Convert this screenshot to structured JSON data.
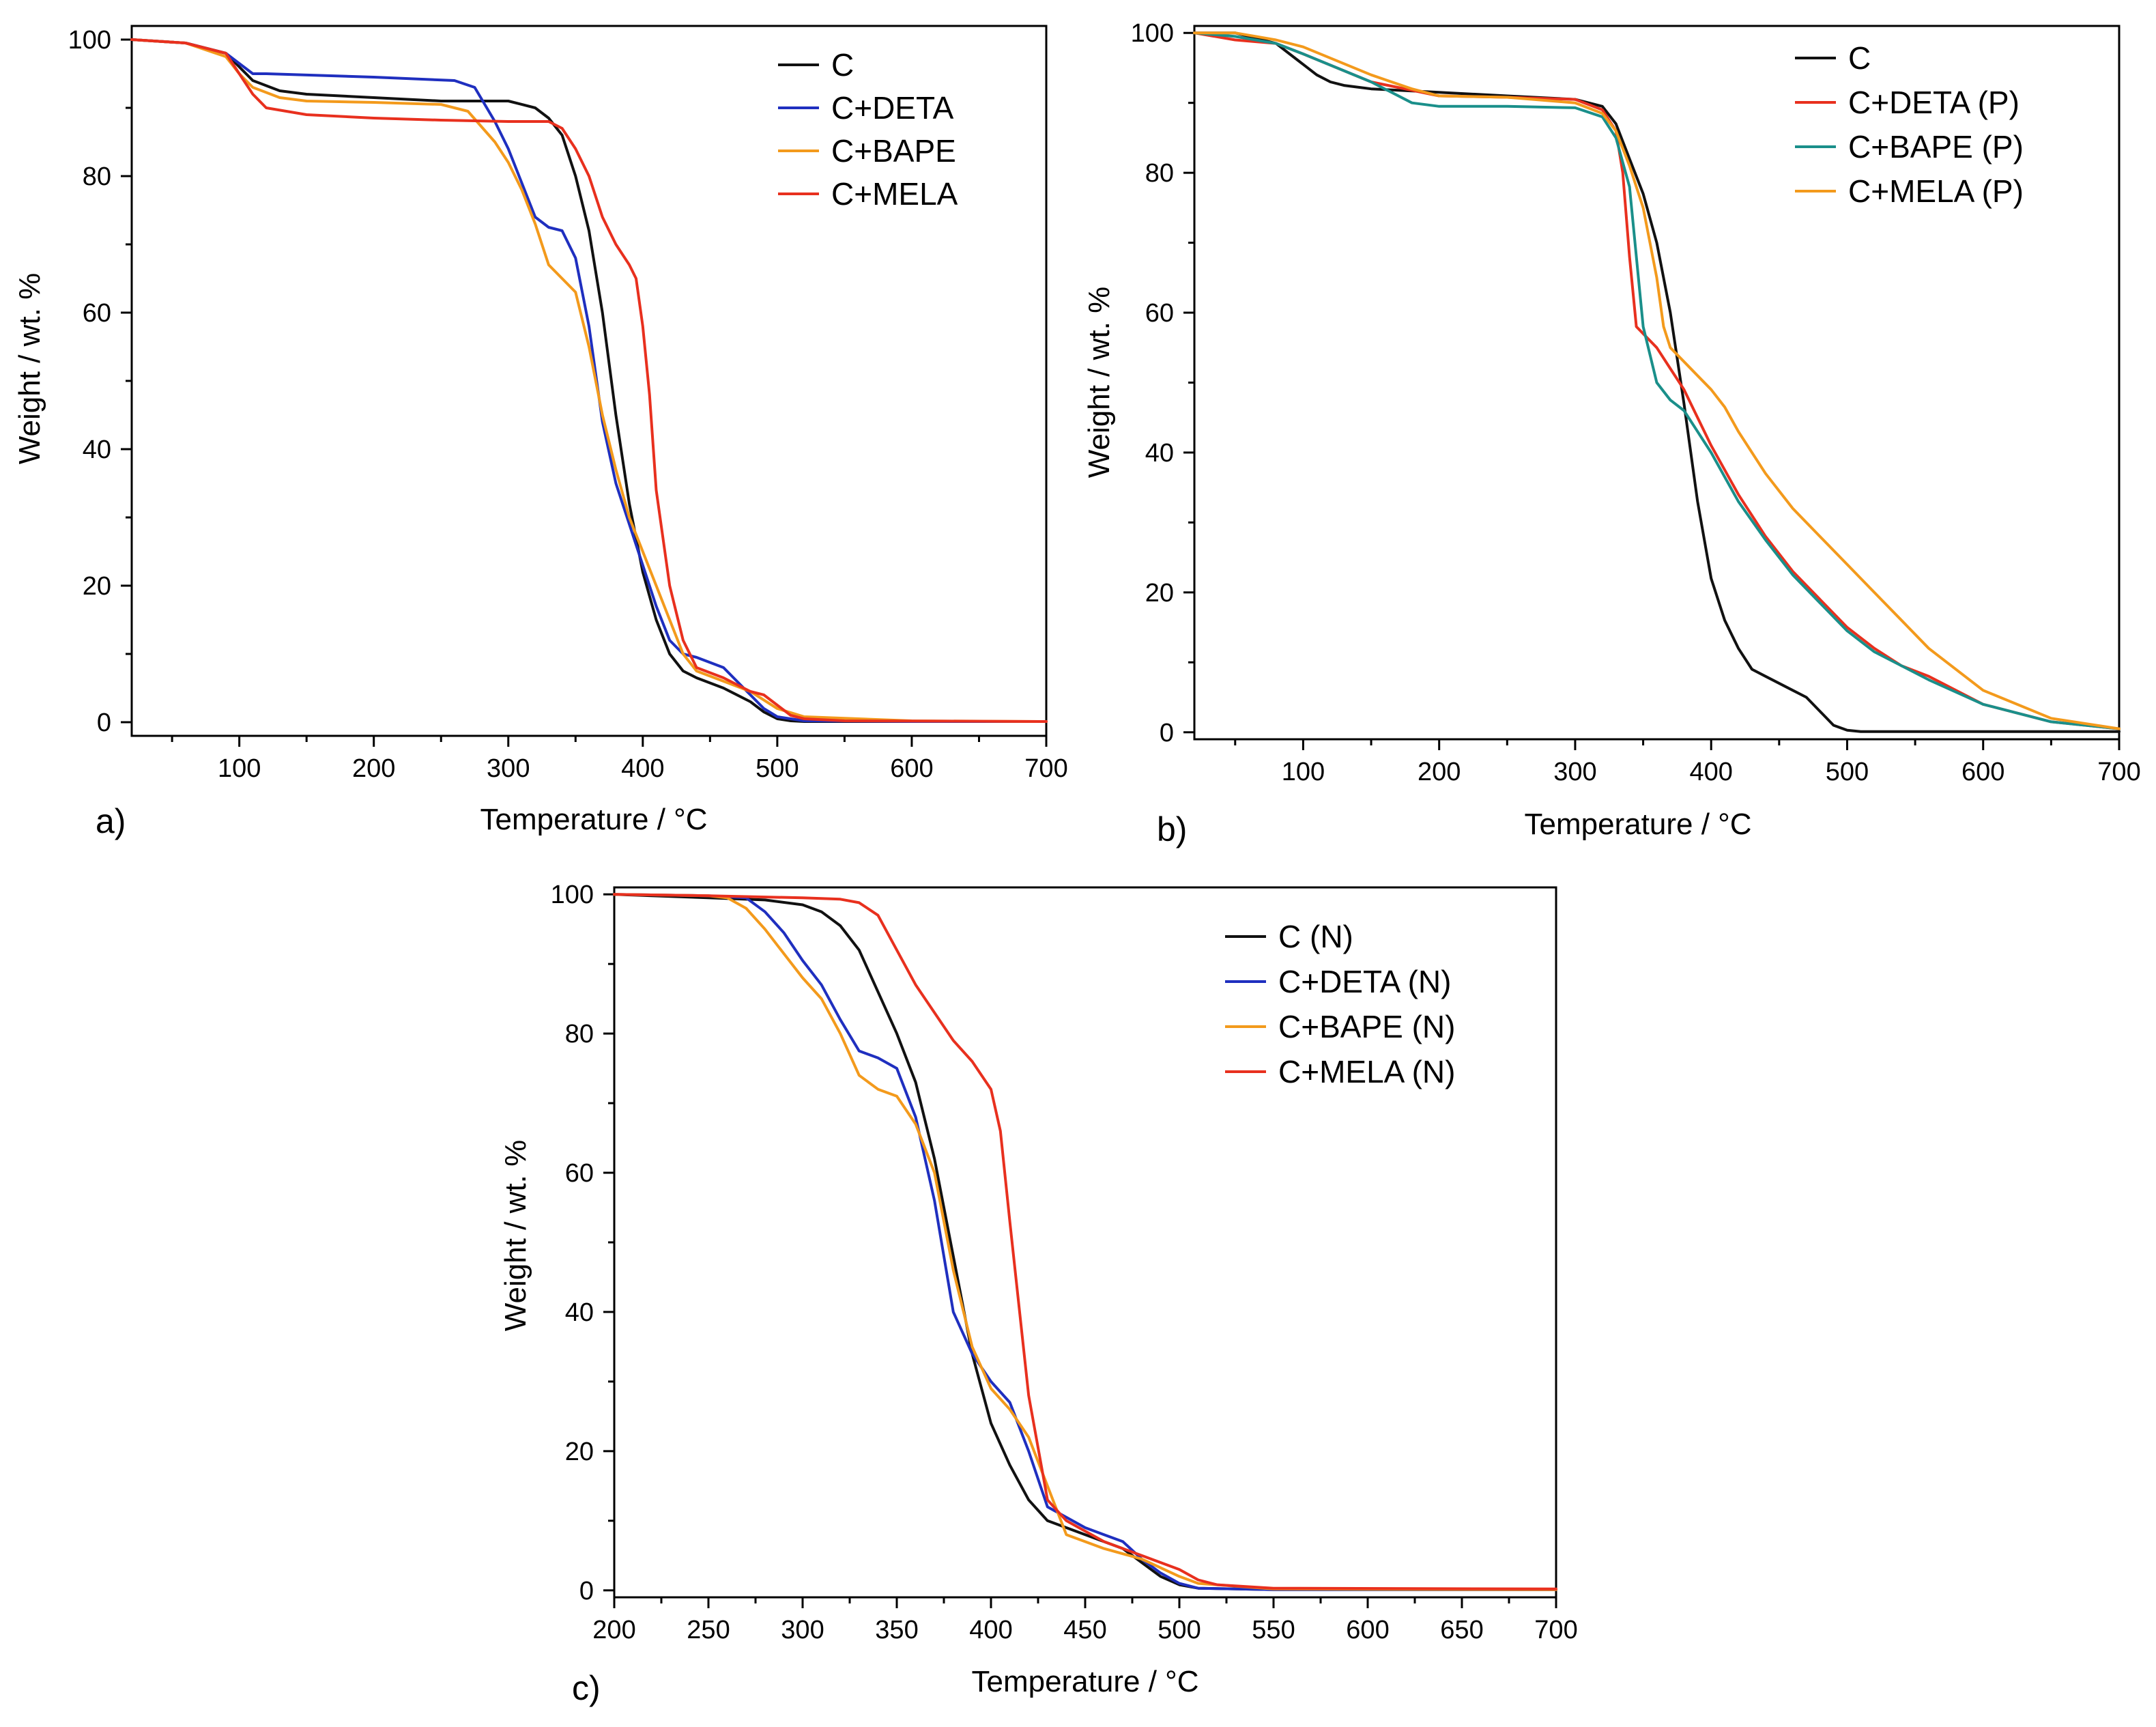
{
  "colors": {
    "black": "#111111",
    "blue": "#1f2fbf",
    "orange": "#f39a1c",
    "red": "#e8301e",
    "teal": "#1a8f8a"
  },
  "chart_data": [
    {
      "type": "line",
      "panel": "a)",
      "title": "",
      "xlabel": "Temperature / °C",
      "ylabel": "Weight / wt. %",
      "xlim": [
        20,
        700
      ],
      "ylim": [
        -2,
        102
      ],
      "xticks": [
        100,
        200,
        300,
        400,
        500,
        600,
        700
      ],
      "yticks": [
        0,
        20,
        40,
        60,
        80,
        100
      ],
      "legend_position": "top-right",
      "series": [
        {
          "name": "C",
          "color": "#111111",
          "x": [
            20,
            60,
            90,
            100,
            110,
            130,
            150,
            200,
            250,
            300,
            320,
            330,
            340,
            350,
            360,
            370,
            380,
            390,
            400,
            410,
            420,
            430,
            440,
            460,
            480,
            490,
            500,
            510,
            520,
            540,
            600,
            700
          ],
          "y": [
            100,
            99.5,
            98,
            96,
            94,
            92.5,
            92,
            91.5,
            91,
            91,
            90,
            88.5,
            86,
            80,
            72,
            60,
            45,
            32,
            22,
            15,
            10,
            7.5,
            6.5,
            5,
            3,
            1.5,
            0.5,
            0.2,
            0.1,
            0.1,
            0.1,
            0.1
          ]
        },
        {
          "name": "C+DETA",
          "color": "#1f2fbf",
          "x": [
            20,
            60,
            90,
            100,
            110,
            120,
            200,
            260,
            275,
            290,
            300,
            310,
            320,
            330,
            340,
            350,
            360,
            370,
            380,
            390,
            400,
            410,
            420,
            430,
            440,
            460,
            470,
            480,
            490,
            500,
            520,
            600,
            700
          ],
          "y": [
            100,
            99.5,
            98,
            96.5,
            95,
            95,
            94.5,
            94,
            93,
            88,
            84,
            79,
            74,
            72.5,
            72,
            68,
            58,
            44,
            35,
            29,
            23,
            17,
            12,
            10,
            9.5,
            8,
            6,
            4,
            2,
            0.8,
            0.2,
            0.1,
            0.1
          ]
        },
        {
          "name": "C+BAPE",
          "color": "#f39a1c",
          "x": [
            20,
            60,
            90,
            100,
            110,
            130,
            150,
            200,
            250,
            270,
            290,
            300,
            310,
            320,
            330,
            340,
            350,
            360,
            370,
            380,
            390,
            400,
            410,
            420,
            430,
            440,
            460,
            480,
            500,
            520,
            600,
            700
          ],
          "y": [
            100,
            99.5,
            97.5,
            95,
            93,
            91.5,
            91,
            90.8,
            90.5,
            89.5,
            85,
            82,
            78,
            73,
            67,
            65,
            63,
            55,
            45,
            37,
            30,
            25,
            20,
            15,
            10,
            7.5,
            6,
            4.5,
            2,
            0.8,
            0.2,
            0.1
          ]
        },
        {
          "name": "C+MELA",
          "color": "#e8301e",
          "x": [
            20,
            60,
            90,
            100,
            110,
            120,
            150,
            200,
            250,
            300,
            330,
            340,
            350,
            360,
            370,
            380,
            390,
            395,
            400,
            405,
            410,
            420,
            430,
            440,
            460,
            480,
            490,
            500,
            510,
            520,
            550,
            700
          ],
          "y": [
            100,
            99.5,
            98,
            95,
            92,
            90,
            89,
            88.5,
            88.2,
            88,
            88,
            87,
            84,
            80,
            74,
            70,
            67,
            65,
            58,
            48,
            34,
            20,
            12,
            8,
            6.5,
            4.5,
            4,
            2.5,
            1,
            0.5,
            0.2,
            0.1
          ]
        }
      ]
    },
    {
      "type": "line",
      "panel": "b)",
      "title": "",
      "xlabel": "Temperature / °C",
      "ylabel": "Weight / wt. %",
      "xlim": [
        20,
        700
      ],
      "ylim": [
        -1,
        101
      ],
      "xticks": [
        100,
        200,
        300,
        400,
        500,
        600,
        700
      ],
      "yticks": [
        0,
        20,
        40,
        60,
        80,
        100
      ],
      "legend_position": "top-right",
      "series": [
        {
          "name": "C",
          "color": "#111111",
          "x": [
            20,
            50,
            70,
            80,
            90,
            100,
            110,
            120,
            130,
            150,
            200,
            250,
            300,
            320,
            330,
            340,
            350,
            360,
            370,
            380,
            390,
            400,
            410,
            420,
            430,
            440,
            460,
            470,
            480,
            490,
            500,
            510,
            600,
            700
          ],
          "y": [
            100,
            100,
            99,
            98.5,
            97,
            95.5,
            94,
            93,
            92.5,
            92,
            91.5,
            91,
            90.5,
            89.5,
            87,
            82,
            77,
            70,
            60,
            47,
            33,
            22,
            16,
            12,
            9,
            8,
            6,
            5,
            3,
            1,
            0.3,
            0.1,
            0.1,
            0.1
          ]
        },
        {
          "name": "C+DETA (P)",
          "color": "#e8301e",
          "x": [
            20,
            50,
            80,
            100,
            150,
            200,
            250,
            300,
            320,
            330,
            335,
            340,
            345,
            350,
            360,
            370,
            380,
            390,
            400,
            420,
            440,
            460,
            480,
            500,
            520,
            540,
            560,
            600,
            650,
            700
          ],
          "y": [
            100,
            99,
            98.5,
            97,
            93,
            91,
            90.8,
            90.5,
            89,
            86,
            80,
            68,
            58,
            57,
            55,
            52,
            49,
            45,
            41,
            34,
            28,
            23,
            19,
            15,
            12,
            9.5,
            8,
            4,
            1.5,
            0.5
          ]
        },
        {
          "name": "C+BAPE (P)",
          "color": "#1a8f8a",
          "x": [
            20,
            50,
            80,
            100,
            150,
            180,
            200,
            250,
            300,
            320,
            330,
            340,
            345,
            350,
            360,
            370,
            380,
            390,
            400,
            420,
            440,
            460,
            480,
            500,
            520,
            540,
            560,
            600,
            650,
            700
          ],
          "y": [
            100,
            99.5,
            98.5,
            97,
            93,
            90,
            89.5,
            89.5,
            89.3,
            88,
            85,
            78,
            68,
            58,
            50,
            47.5,
            46,
            43,
            40,
            33,
            27.5,
            22.5,
            18.5,
            14.5,
            11.5,
            9.5,
            7.5,
            4,
            1.5,
            0.5
          ]
        },
        {
          "name": "C+MELA (P)",
          "color": "#f39a1c",
          "x": [
            20,
            50,
            80,
            100,
            150,
            180,
            200,
            250,
            300,
            320,
            330,
            340,
            350,
            360,
            365,
            370,
            380,
            390,
            400,
            410,
            420,
            440,
            460,
            480,
            500,
            520,
            540,
            560,
            600,
            650,
            700
          ],
          "y": [
            100,
            100,
            99,
            98,
            94,
            92,
            91,
            90.8,
            90,
            88.5,
            86,
            81,
            75,
            65,
            58,
            55,
            53,
            51,
            49,
            46.5,
            43,
            37,
            32,
            28,
            24,
            20,
            16,
            12,
            6,
            2,
            0.5
          ]
        }
      ]
    },
    {
      "type": "line",
      "panel": "c)",
      "title": "",
      "xlabel": "Temperature / °C",
      "ylabel": "Weight / wt. %",
      "xlim": [
        200,
        700
      ],
      "ylim": [
        -1,
        101
      ],
      "xticks": [
        200,
        250,
        300,
        350,
        400,
        450,
        500,
        550,
        600,
        650,
        700
      ],
      "yticks": [
        0,
        20,
        40,
        60,
        80,
        100
      ],
      "legend_position": "top-right",
      "series": [
        {
          "name": "C (N)",
          "color": "#111111",
          "x": [
            200,
            250,
            280,
            300,
            310,
            320,
            330,
            340,
            350,
            360,
            370,
            380,
            390,
            400,
            410,
            420,
            430,
            450,
            470,
            480,
            490,
            500,
            510,
            550,
            700
          ],
          "y": [
            100,
            99.5,
            99.2,
            98.5,
            97.5,
            95.5,
            92,
            86,
            80,
            73,
            62,
            48,
            34,
            24,
            18,
            13,
            10,
            8,
            6,
            4,
            2,
            0.8,
            0.3,
            0.1,
            0.1
          ]
        },
        {
          "name": "C+DETA (N)",
          "color": "#1f2fbf",
          "x": [
            200,
            250,
            270,
            280,
            290,
            300,
            310,
            320,
            330,
            340,
            350,
            360,
            370,
            380,
            390,
            400,
            410,
            420,
            430,
            450,
            460,
            470,
            480,
            490,
            500,
            510,
            550,
            700
          ],
          "y": [
            100,
            99.8,
            99.5,
            97.5,
            94.5,
            90.5,
            87,
            82,
            77.5,
            76.5,
            75,
            68,
            56,
            40,
            34,
            30,
            27,
            20,
            12,
            9,
            8,
            7,
            4.5,
            2.5,
            1,
            0.3,
            0.1,
            0.1
          ]
        },
        {
          "name": "C+BAPE (N)",
          "color": "#f39a1c",
          "x": [
            200,
            250,
            260,
            270,
            280,
            290,
            300,
            310,
            320,
            330,
            340,
            350,
            360,
            370,
            380,
            390,
            400,
            410,
            420,
            430,
            440,
            460,
            480,
            500,
            510,
            550,
            700
          ],
          "y": [
            100,
            99.8,
            99.5,
            98,
            95,
            91.5,
            88,
            85,
            80,
            74,
            72,
            71,
            67,
            60,
            46,
            35,
            29,
            26,
            22,
            15,
            8,
            6,
            4.5,
            2,
            1,
            0.2,
            0.1
          ]
        },
        {
          "name": "C+MELA (N)",
          "color": "#e8301e",
          "x": [
            200,
            250,
            300,
            320,
            330,
            340,
            350,
            360,
            370,
            380,
            390,
            400,
            405,
            410,
            420,
            430,
            440,
            460,
            480,
            490,
            500,
            510,
            520,
            550,
            700
          ],
          "y": [
            100,
            99.8,
            99.5,
            99.3,
            98.8,
            97,
            92,
            87,
            83,
            79,
            76,
            72,
            66,
            53,
            28,
            13,
            10,
            7,
            5,
            4,
            3,
            1.5,
            0.8,
            0.3,
            0.2
          ]
        }
      ]
    }
  ]
}
